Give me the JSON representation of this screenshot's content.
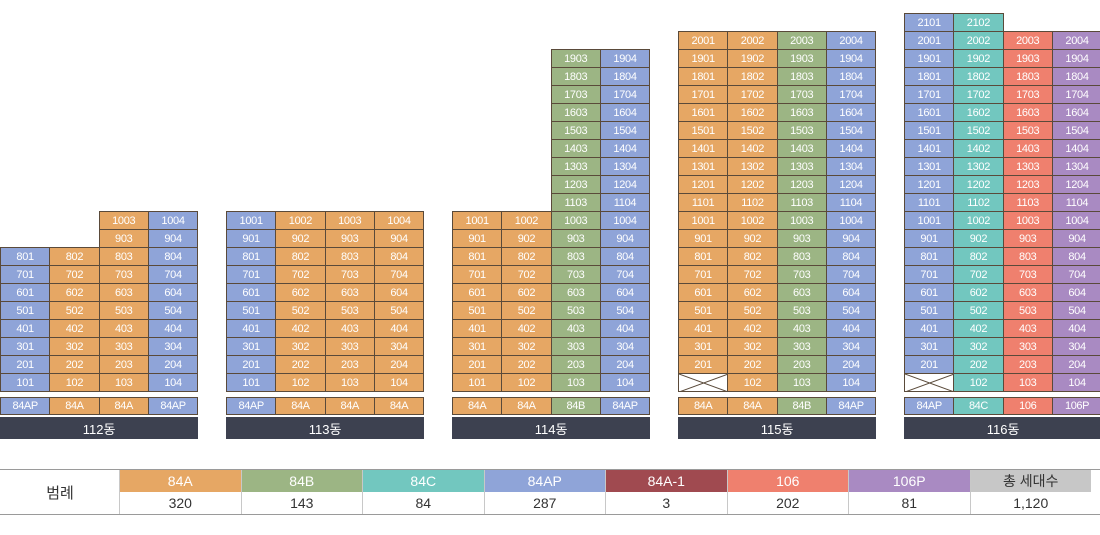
{
  "colors": {
    "84A": "#e6a764",
    "84B": "#9cb584",
    "84C": "#72c7bf",
    "84AP": "#8fa4d8",
    "84A-1": "#a04a50",
    "106": "#ef806e",
    "106P": "#a98ac2",
    "total": "#c7c7c7"
  },
  "buildings": [
    {
      "name": "112동",
      "lines": [
        {
          "type": "84AP",
          "units": [
            "801",
            "701",
            "601",
            "501",
            "401",
            "301",
            "201",
            "101"
          ]
        },
        {
          "type": "84A",
          "units": [
            "802",
            "702",
            "602",
            "502",
            "402",
            "302",
            "202",
            "102"
          ]
        },
        {
          "type": "84A",
          "units": [
            "1003",
            "903",
            "803",
            "703",
            "603",
            "503",
            "403",
            "303",
            "203",
            "103"
          ]
        },
        {
          "type": "84AP",
          "units": [
            "1004",
            "904",
            "804",
            "704",
            "604",
            "504",
            "404",
            "304",
            "204",
            "104"
          ]
        }
      ]
    },
    {
      "name": "113동",
      "lines": [
        {
          "type": "84AP",
          "units": [
            "1001",
            "901",
            "801",
            "701",
            "601",
            "501",
            "401",
            "301",
            "201",
            "101"
          ]
        },
        {
          "type": "84A",
          "units": [
            "1002",
            "902",
            "802",
            "702",
            "602",
            "502",
            "402",
            "302",
            "202",
            "102"
          ]
        },
        {
          "type": "84A",
          "units": [
            "1003",
            "903",
            "803",
            "703",
            "603",
            "503",
            "403",
            "303",
            "203",
            "103"
          ]
        },
        {
          "type": "84A",
          "units": [
            "1004",
            "904",
            "804",
            "704",
            "604",
            "504",
            "404",
            "304",
            "204",
            "104"
          ]
        }
      ]
    },
    {
      "name": "114동",
      "lines": [
        {
          "type": "84A",
          "units": [
            "1001",
            "901",
            "801",
            "701",
            "601",
            "501",
            "401",
            "301",
            "201",
            "101"
          ]
        },
        {
          "type": "84A",
          "units": [
            "1002",
            "902",
            "802",
            "702",
            "602",
            "502",
            "402",
            "302",
            "202",
            "102"
          ]
        },
        {
          "type": "84B",
          "units": [
            "1903",
            "1803",
            "1703",
            "1603",
            "1503",
            "1403",
            "1303",
            "1203",
            "1103",
            "1003",
            "903",
            "803",
            "703",
            "603",
            "503",
            "403",
            "303",
            "203",
            "103"
          ]
        },
        {
          "type": "84AP",
          "units": [
            "1904",
            "1804",
            "1704",
            "1604",
            "1504",
            "1404",
            "1304",
            "1204",
            "1104",
            "1004",
            "904",
            "804",
            "704",
            "604",
            "504",
            "404",
            "304",
            "204",
            "104"
          ]
        }
      ]
    },
    {
      "name": "115동",
      "lines": [
        {
          "type": "84A",
          "units": [
            "2001",
            "1901",
            "1801",
            "1701",
            "1601",
            "1501",
            "1401",
            "1301",
            "1201",
            "1101",
            "1001",
            "901",
            "801",
            "701",
            "601",
            "501",
            "401",
            "301",
            "201",
            ""
          ]
        },
        {
          "type": "84A",
          "units": [
            "2002",
            "1902",
            "1802",
            "1702",
            "1602",
            "1502",
            "1402",
            "1302",
            "1202",
            "1102",
            "1002",
            "902",
            "802",
            "702",
            "602",
            "502",
            "402",
            "302",
            "202",
            "102"
          ]
        },
        {
          "type": "84B",
          "units": [
            "2003",
            "1903",
            "1803",
            "1703",
            "1603",
            "1503",
            "1403",
            "1303",
            "1203",
            "1103",
            "1003",
            "903",
            "803",
            "703",
            "603",
            "503",
            "403",
            "303",
            "203",
            "103"
          ]
        },
        {
          "type": "84AP",
          "units": [
            "2004",
            "1904",
            "1804",
            "1704",
            "1604",
            "1504",
            "1404",
            "1304",
            "1204",
            "1104",
            "1004",
            "904",
            "804",
            "704",
            "604",
            "504",
            "404",
            "304",
            "204",
            "104"
          ]
        }
      ]
    },
    {
      "name": "116동",
      "lines": [
        {
          "type": "84AP",
          "units": [
            "2101",
            "2001",
            "1901",
            "1801",
            "1701",
            "1601",
            "1501",
            "1401",
            "1301",
            "1201",
            "1101",
            "1001",
            "901",
            "801",
            "701",
            "601",
            "501",
            "401",
            "301",
            "201",
            ""
          ]
        },
        {
          "type": "84C",
          "units": [
            "2102",
            "2002",
            "1902",
            "1802",
            "1702",
            "1602",
            "1502",
            "1402",
            "1302",
            "1202",
            "1102",
            "1002",
            "902",
            "802",
            "702",
            "602",
            "502",
            "402",
            "302",
            "202",
            "102"
          ]
        },
        {
          "type": "106",
          "units": [
            "2003",
            "1903",
            "1803",
            "1703",
            "1603",
            "1503",
            "1403",
            "1303",
            "1203",
            "1103",
            "1003",
            "903",
            "803",
            "703",
            "603",
            "503",
            "403",
            "303",
            "203",
            "103"
          ]
        },
        {
          "type": "106P",
          "units": [
            "2004",
            "1904",
            "1804",
            "1704",
            "1604",
            "1504",
            "1404",
            "1304",
            "1204",
            "1104",
            "1004",
            "904",
            "804",
            "704",
            "604",
            "504",
            "404",
            "304",
            "204",
            "104"
          ]
        }
      ]
    }
  ],
  "legend": {
    "title": "범례",
    "items": [
      {
        "label": "84A",
        "count": "320",
        "color": "#e6a764"
      },
      {
        "label": "84B",
        "count": "143",
        "color": "#9cb584"
      },
      {
        "label": "84C",
        "count": "84",
        "color": "#72c7bf"
      },
      {
        "label": "84AP",
        "count": "287",
        "color": "#8fa4d8"
      },
      {
        "label": "84A-1",
        "count": "3",
        "color": "#a04a50"
      },
      {
        "label": "106",
        "count": "202",
        "color": "#ef806e"
      },
      {
        "label": "106P",
        "count": "81",
        "color": "#a98ac2"
      },
      {
        "label": "총 세대수",
        "count": "1,120",
        "color": "#c7c7c7",
        "dark": true
      }
    ]
  }
}
